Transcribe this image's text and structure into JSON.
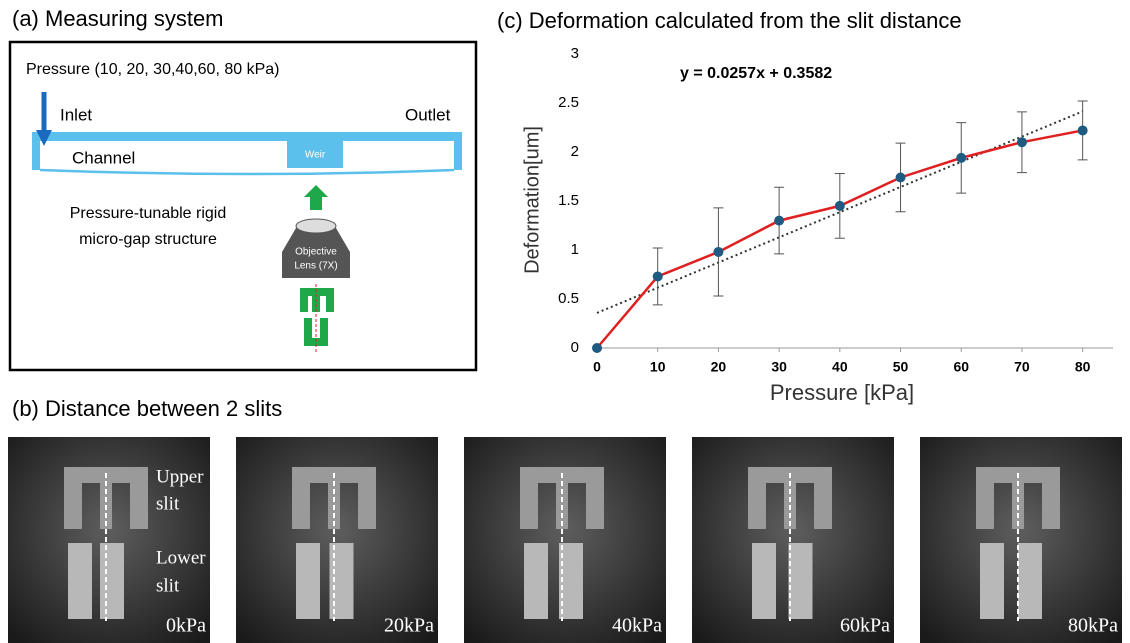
{
  "panel_a": {
    "title": "(a) Measuring system",
    "pressure": "Pressure (10, 20, 30,40,60, 80 kPa)",
    "inlet": "Inlet",
    "outlet": "Outlet",
    "channel": "Channel",
    "weir": "Weir",
    "structure": [
      "Pressure-tunable rigid",
      "micro-gap structure"
    ],
    "lens": [
      "Objective",
      "Lens (7X)"
    ]
  },
  "panel_b": {
    "title": "(b) Distance between 2 slits",
    "upper": [
      "Upper",
      "slit"
    ],
    "lower": [
      "Lower",
      "slit"
    ],
    "images": [
      "0kPa",
      "20kPa",
      "40kPa",
      "60kPa",
      "80kPa"
    ]
  },
  "chart_data": {
    "type": "line",
    "title": "(c) Deformation calculated from the slit distance",
    "annotation": "y = 0.0257x + 0.3582",
    "fit": {
      "slope": 0.0257,
      "intercept": 0.3582
    },
    "x_label": "Pressure [kPa]",
    "y_label": "Deformation[um]",
    "x": [
      0,
      10,
      20,
      30,
      40,
      50,
      60,
      70,
      80
    ],
    "values": [
      0,
      0.73,
      0.98,
      1.3,
      1.45,
      1.74,
      1.94,
      2.1,
      2.22
    ],
    "errors": [
      0,
      0.29,
      0.45,
      0.34,
      0.33,
      0.35,
      0.36,
      0.31,
      0.3
    ],
    "color": "#e02020",
    "marker_color": "#1f5a80",
    "xlim": [
      0,
      85
    ],
    "ylim": [
      0,
      3
    ],
    "xticks": [
      0,
      10,
      20,
      30,
      40,
      50,
      60,
      70,
      80
    ],
    "yticks": [
      0,
      0.5,
      1,
      1.5,
      2,
      2.5,
      3
    ]
  }
}
